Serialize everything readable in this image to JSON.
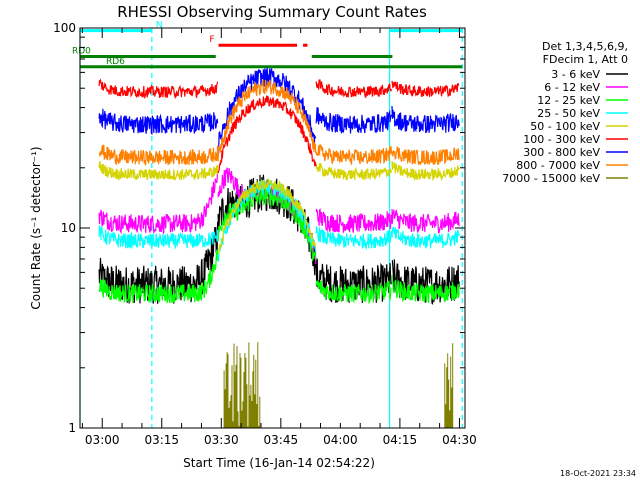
{
  "chart_data": {
    "type": "line",
    "title": "RHESSI Observing Summary Count Rates",
    "xlabel": "Start Time (16-Jan-14 02:54:22)",
    "ylabel": "Count Rate (s⁻¹ detector⁻¹)",
    "yscale": "log",
    "ylim": [
      1,
      100
    ],
    "xlim_minutes_after_start": [
      0,
      97
    ],
    "xticks": [
      {
        "label": "03:00",
        "minute": 5.6
      },
      {
        "label": "03:15",
        "minute": 20.6
      },
      {
        "label": "03:30",
        "minute": 35.6
      },
      {
        "label": "03:45",
        "minute": 50.6
      },
      {
        "label": "04:00",
        "minute": 65.6
      },
      {
        "label": "04:15",
        "minute": 80.6
      },
      {
        "label": "04:30",
        "minute": 95.6
      }
    ],
    "yticks": [
      {
        "label": "1",
        "value": 1
      },
      {
        "label": "10",
        "value": 10
      },
      {
        "label": "100",
        "value": 100
      }
    ],
    "legend": {
      "header": [
        "Det 1,3,4,5,6,9,",
        "FDecim 1, Att 0"
      ],
      "placement": "right"
    },
    "series": [
      {
        "name": "3 - 6 keV",
        "color": "#000000",
        "profile": {
          "base": 5.2,
          "peak": 15,
          "noise": 0.1
        },
        "extra_flare": {
          "center_min": 36,
          "width_min": 2.5,
          "amp": 4
        }
      },
      {
        "name": "6 - 12 keV",
        "color": "#ff00ff",
        "profile": {
          "base": 10.5,
          "peak": 15,
          "noise": 0.05
        },
        "extra_flare": {
          "center_min": 36.5,
          "width_min": 2.5,
          "amp": 9
        }
      },
      {
        "name": "12 - 25 keV",
        "color": "#00ff00",
        "profile": {
          "base": 4.7,
          "peak": 14.5,
          "noise": 0.05
        },
        "extra_flare": {
          "center_min": 36,
          "width_min": 2.0,
          "amp": 3
        }
      },
      {
        "name": "25 - 50 keV",
        "color": "#00ffff",
        "profile": {
          "base": 8.6,
          "peak": 16,
          "noise": 0.04
        }
      },
      {
        "name": "50 - 100 keV",
        "color": "#d4d400",
        "profile": {
          "base": 18.5,
          "peak": 16.5,
          "noise": 0.03
        }
      },
      {
        "name": "100 - 300 keV",
        "color": "#ff0000",
        "profile": {
          "base": 48,
          "peak": 43,
          "noise": 0.03
        }
      },
      {
        "name": "300 - 800 keV",
        "color": "#0000ff",
        "profile": {
          "base": 33,
          "peak": 57,
          "noise": 0.05
        }
      },
      {
        "name": "800 - 7000 keV",
        "color": "#ff8000",
        "profile": {
          "base": 22.5,
          "peak": 51,
          "noise": 0.04
        }
      },
      {
        "name": "7000 - 15000 keV",
        "color": "#808000",
        "profile": {
          "base": 0,
          "peak": 0,
          "noise": 0
        },
        "spikes": [
          {
            "from_min": 36.3,
            "to_min": 45.4,
            "max": 2.8
          },
          {
            "from_min": 91.9,
            "to_min": 93.9,
            "max": 2.9
          }
        ]
      }
    ],
    "segments": [
      {
        "kind": "observing",
        "from_min": 4.7,
        "to_min": 34.8
      },
      {
        "kind": "night",
        "from_min": 34.8,
        "to_min": 59.5
      },
      {
        "kind": "observing",
        "from_min": 59.5,
        "to_min": 78.5
      },
      {
        "kind": "observing",
        "from_min": 78.5,
        "to_min": 95.6
      }
    ],
    "flag_bars": [
      {
        "label": "N",
        "color": "#00ffff",
        "from_min": 0,
        "to_min": 18.1,
        "value": 97
      },
      {
        "label": "",
        "color": "#00ffff",
        "from_min": 78.0,
        "to_min": 96.3,
        "value": 97
      },
      {
        "label": "F",
        "color": "#ff0000",
        "from_min": 34.9,
        "to_min": 54.7,
        "value": 82
      },
      {
        "label": "",
        "color": "#ff0000",
        "from_min": 56.2,
        "to_min": 57.3,
        "value": 82
      },
      {
        "label": "RD0",
        "color": "#008000",
        "from_min": 0,
        "to_min": 34.2,
        "value": 72
      },
      {
        "label": "",
        "color": "#008000",
        "from_min": 58.4,
        "to_min": 78.7,
        "value": 72
      },
      {
        "label": "RD6",
        "color": "#008000",
        "from_min": 0,
        "to_min": 96.3,
        "value": 64
      }
    ],
    "vertical_markers": [
      {
        "color": "#00ffff",
        "style": "solid",
        "minute": 0
      },
      {
        "color": "#00ffff",
        "style": "dashed",
        "minute": 18.1
      },
      {
        "color": "#00ffff",
        "style": "solid",
        "minute": 78.0
      },
      {
        "color": "#00ffff",
        "style": "dashed",
        "minute": 96.3
      }
    ],
    "footer_date": "18-Oct-2021 23:34"
  }
}
